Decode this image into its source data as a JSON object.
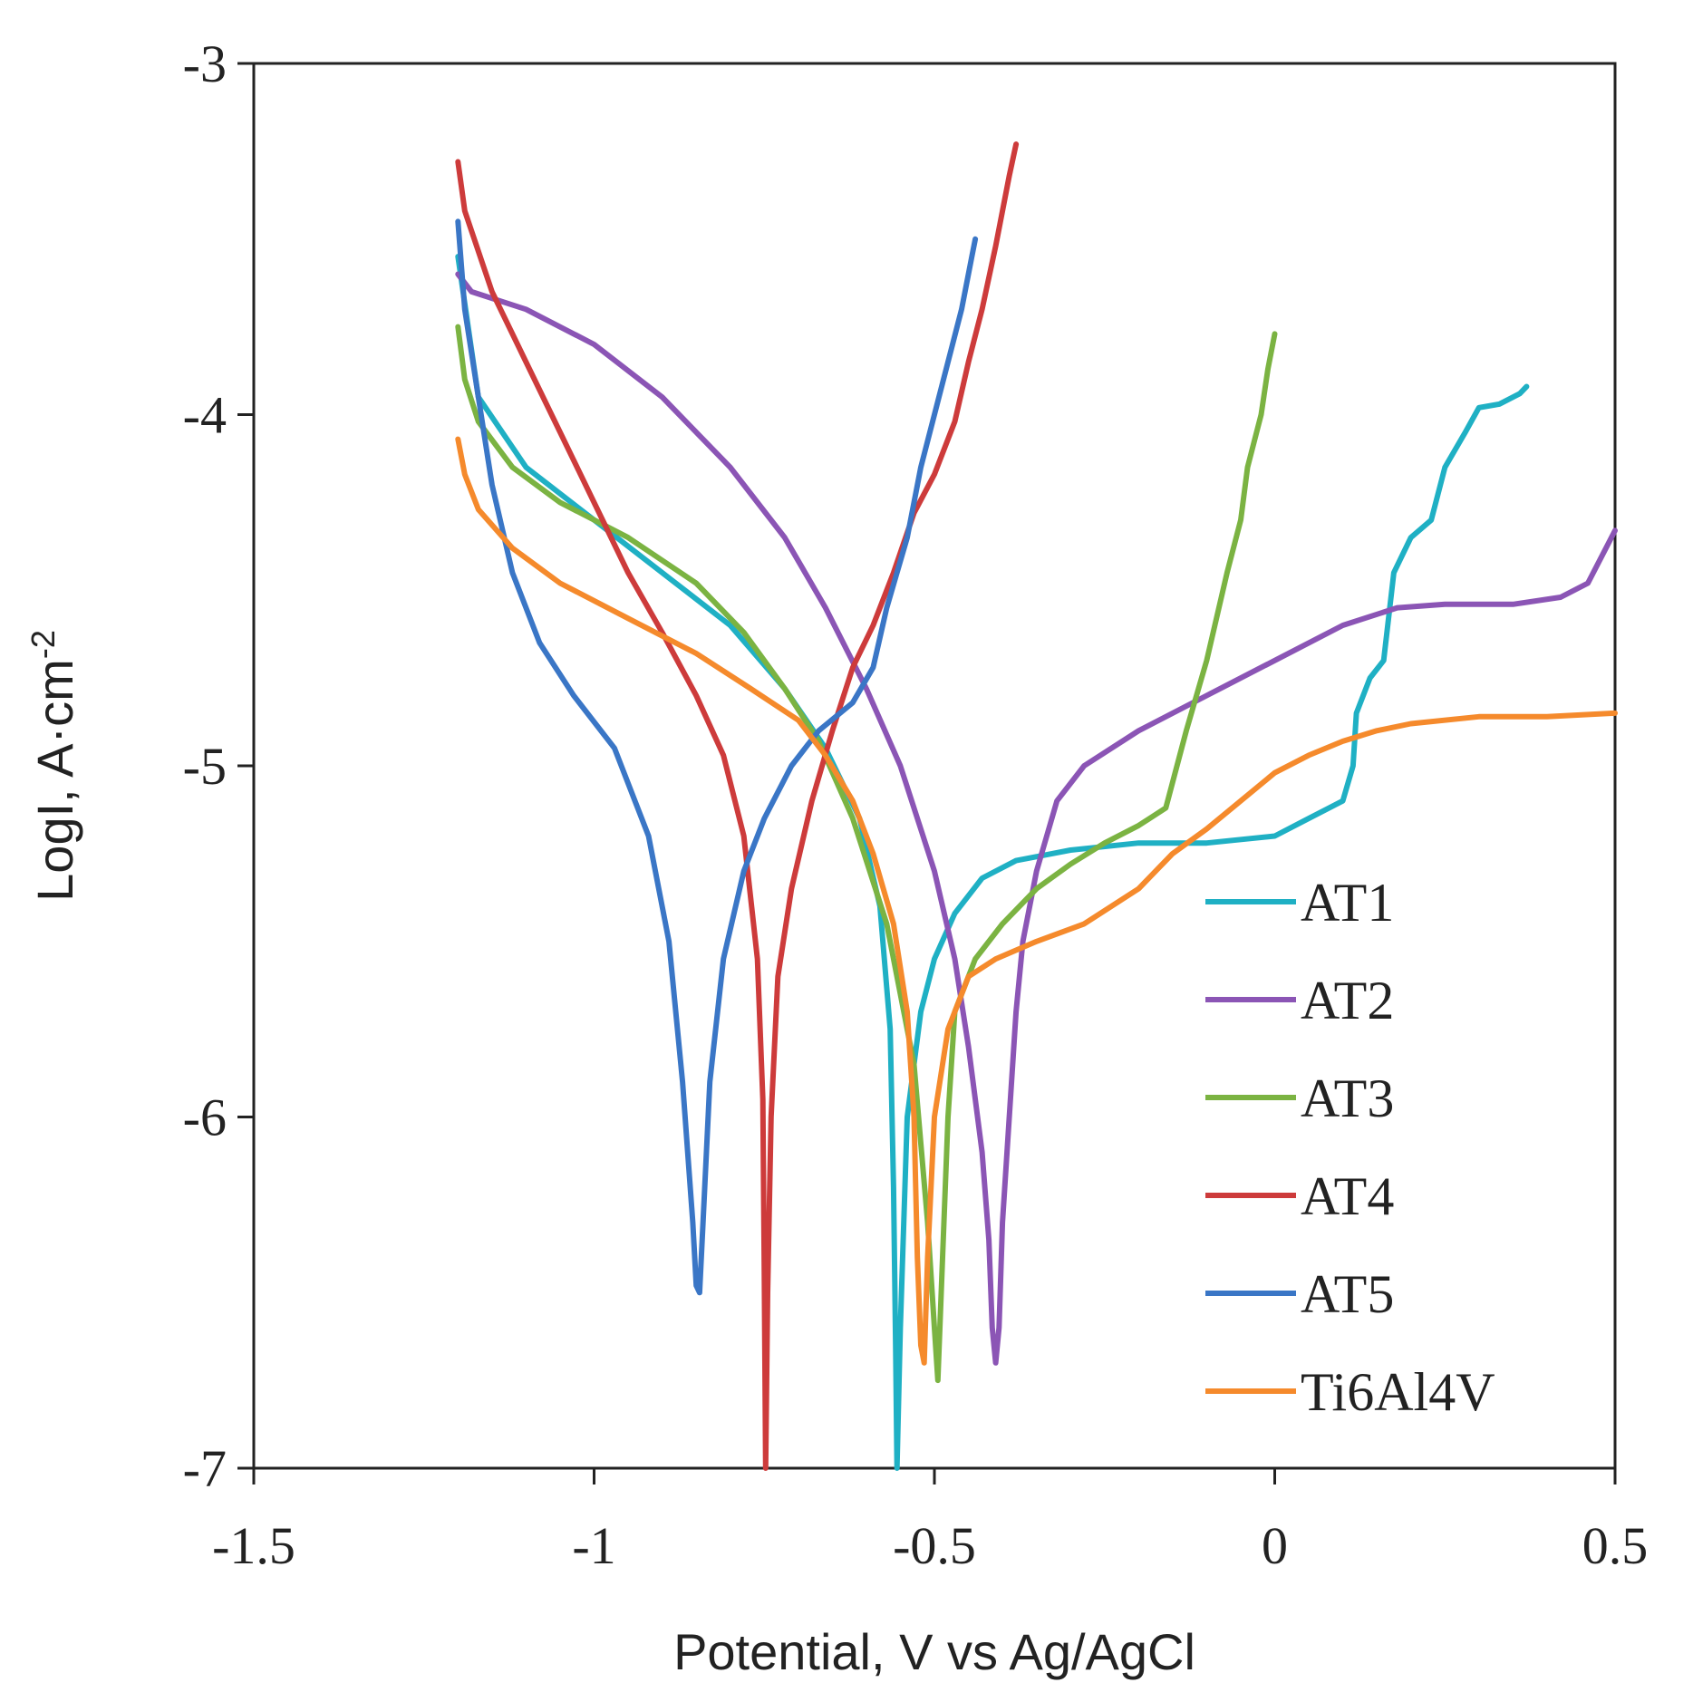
{
  "chart_data": {
    "type": "line",
    "title": "",
    "xlabel": "Potential, V vs Ag/AgCl",
    "ylabel_main": "LogI, A·cm",
    "ylabel_sup": "-2",
    "xlim": [
      -1.5,
      0.5
    ],
    "ylim": [
      -7,
      -3
    ],
    "xticks": [
      -1.5,
      -1,
      -0.5,
      0,
      0.5
    ],
    "xtick_labels": [
      "-1.5",
      "-1",
      "-0.5",
      "0",
      "0.5"
    ],
    "yticks": [
      -3,
      -4,
      -5,
      -6,
      -7
    ],
    "ytick_labels": [
      "-3",
      "-4",
      "-5",
      "-6",
      "-7"
    ],
    "grid": false,
    "legend_position": "bottom-right",
    "series": [
      {
        "name": "AT1",
        "color": "#1fb0c4",
        "points": [
          [
            -1.2,
            -3.55
          ],
          [
            -1.17,
            -3.95
          ],
          [
            -1.1,
            -4.15
          ],
          [
            -1.0,
            -4.3
          ],
          [
            -0.9,
            -4.45
          ],
          [
            -0.8,
            -4.6
          ],
          [
            -0.72,
            -4.78
          ],
          [
            -0.66,
            -4.95
          ],
          [
            -0.61,
            -5.15
          ],
          [
            -0.58,
            -5.4
          ],
          [
            -0.565,
            -5.75
          ],
          [
            -0.56,
            -6.2
          ],
          [
            -0.557,
            -6.65
          ],
          [
            -0.555,
            -7.0
          ],
          [
            -0.55,
            -6.6
          ],
          [
            -0.54,
            -6.0
          ],
          [
            -0.52,
            -5.7
          ],
          [
            -0.5,
            -5.55
          ],
          [
            -0.47,
            -5.42
          ],
          [
            -0.43,
            -5.32
          ],
          [
            -0.38,
            -5.27
          ],
          [
            -0.3,
            -5.24
          ],
          [
            -0.2,
            -5.22
          ],
          [
            -0.1,
            -5.22
          ],
          [
            0.0,
            -5.2
          ],
          [
            0.05,
            -5.15
          ],
          [
            0.1,
            -5.1
          ],
          [
            0.115,
            -5.0
          ],
          [
            0.12,
            -4.85
          ],
          [
            0.14,
            -4.75
          ],
          [
            0.16,
            -4.7
          ],
          [
            0.175,
            -4.45
          ],
          [
            0.2,
            -4.35
          ],
          [
            0.23,
            -4.3
          ],
          [
            0.25,
            -4.15
          ],
          [
            0.28,
            -4.05
          ],
          [
            0.3,
            -3.98
          ],
          [
            0.33,
            -3.97
          ],
          [
            0.36,
            -3.94
          ],
          [
            0.37,
            -3.92
          ]
        ]
      },
      {
        "name": "AT2",
        "color": "#8b55b5",
        "points": [
          [
            -1.2,
            -3.6
          ],
          [
            -1.18,
            -3.65
          ],
          [
            -1.1,
            -3.7
          ],
          [
            -1.0,
            -3.8
          ],
          [
            -0.9,
            -3.95
          ],
          [
            -0.8,
            -4.15
          ],
          [
            -0.72,
            -4.35
          ],
          [
            -0.66,
            -4.55
          ],
          [
            -0.6,
            -4.78
          ],
          [
            -0.55,
            -5.0
          ],
          [
            -0.5,
            -5.3
          ],
          [
            -0.47,
            -5.55
          ],
          [
            -0.45,
            -5.8
          ],
          [
            -0.43,
            -6.1
          ],
          [
            -0.42,
            -6.35
          ],
          [
            -0.415,
            -6.6
          ],
          [
            -0.41,
            -6.7
          ],
          [
            -0.405,
            -6.6
          ],
          [
            -0.4,
            -6.3
          ],
          [
            -0.39,
            -6.0
          ],
          [
            -0.38,
            -5.7
          ],
          [
            -0.37,
            -5.5
          ],
          [
            -0.35,
            -5.3
          ],
          [
            -0.32,
            -5.1
          ],
          [
            -0.28,
            -5.0
          ],
          [
            -0.2,
            -4.9
          ],
          [
            -0.1,
            -4.8
          ],
          [
            0.0,
            -4.7
          ],
          [
            0.1,
            -4.6
          ],
          [
            0.18,
            -4.55
          ],
          [
            0.25,
            -4.54
          ],
          [
            0.35,
            -4.54
          ],
          [
            0.42,
            -4.52
          ],
          [
            0.46,
            -4.48
          ],
          [
            0.5,
            -4.33
          ]
        ]
      },
      {
        "name": "AT3",
        "color": "#7bb342",
        "points": [
          [
            -1.2,
            -3.75
          ],
          [
            -1.19,
            -3.9
          ],
          [
            -1.17,
            -4.02
          ],
          [
            -1.12,
            -4.15
          ],
          [
            -1.05,
            -4.25
          ],
          [
            -0.95,
            -4.35
          ],
          [
            -0.85,
            -4.48
          ],
          [
            -0.78,
            -4.62
          ],
          [
            -0.72,
            -4.78
          ],
          [
            -0.67,
            -4.93
          ],
          [
            -0.62,
            -5.15
          ],
          [
            -0.57,
            -5.45
          ],
          [
            -0.53,
            -5.85
          ],
          [
            -0.51,
            -6.3
          ],
          [
            -0.5,
            -6.6
          ],
          [
            -0.495,
            -6.75
          ],
          [
            -0.49,
            -6.5
          ],
          [
            -0.48,
            -6.0
          ],
          [
            -0.47,
            -5.7
          ],
          [
            -0.44,
            -5.55
          ],
          [
            -0.4,
            -5.45
          ],
          [
            -0.35,
            -5.35
          ],
          [
            -0.3,
            -5.28
          ],
          [
            -0.25,
            -5.22
          ],
          [
            -0.2,
            -5.17
          ],
          [
            -0.16,
            -5.12
          ],
          [
            -0.13,
            -4.9
          ],
          [
            -0.1,
            -4.7
          ],
          [
            -0.07,
            -4.45
          ],
          [
            -0.05,
            -4.3
          ],
          [
            -0.04,
            -4.15
          ],
          [
            -0.02,
            -4.0
          ],
          [
            -0.01,
            -3.87
          ],
          [
            0.0,
            -3.77
          ]
        ]
      },
      {
        "name": "AT4",
        "color": "#cd3b3b",
        "points": [
          [
            -1.2,
            -3.28
          ],
          [
            -1.19,
            -3.42
          ],
          [
            -1.15,
            -3.65
          ],
          [
            -1.1,
            -3.85
          ],
          [
            -1.05,
            -4.05
          ],
          [
            -1.0,
            -4.25
          ],
          [
            -0.95,
            -4.45
          ],
          [
            -0.9,
            -4.62
          ],
          [
            -0.85,
            -4.8
          ],
          [
            -0.81,
            -4.97
          ],
          [
            -0.78,
            -5.2
          ],
          [
            -0.76,
            -5.55
          ],
          [
            -0.752,
            -5.95
          ],
          [
            -0.75,
            -6.45
          ],
          [
            -0.748,
            -7.0
          ],
          [
            -0.745,
            -6.5
          ],
          [
            -0.74,
            -6.0
          ],
          [
            -0.73,
            -5.6
          ],
          [
            -0.71,
            -5.35
          ],
          [
            -0.68,
            -5.1
          ],
          [
            -0.65,
            -4.9
          ],
          [
            -0.62,
            -4.72
          ],
          [
            -0.59,
            -4.6
          ],
          [
            -0.56,
            -4.45
          ],
          [
            -0.53,
            -4.28
          ],
          [
            -0.5,
            -4.17
          ],
          [
            -0.47,
            -4.02
          ],
          [
            -0.45,
            -3.85
          ],
          [
            -0.43,
            -3.7
          ],
          [
            -0.41,
            -3.52
          ],
          [
            -0.39,
            -3.32
          ],
          [
            -0.38,
            -3.23
          ]
        ]
      },
      {
        "name": "AT5",
        "color": "#3a76c6",
        "points": [
          [
            -1.2,
            -3.45
          ],
          [
            -1.19,
            -3.7
          ],
          [
            -1.17,
            -3.95
          ],
          [
            -1.15,
            -4.2
          ],
          [
            -1.12,
            -4.45
          ],
          [
            -1.08,
            -4.65
          ],
          [
            -1.03,
            -4.8
          ],
          [
            -0.97,
            -4.95
          ],
          [
            -0.92,
            -5.2
          ],
          [
            -0.89,
            -5.5
          ],
          [
            -0.87,
            -5.9
          ],
          [
            -0.855,
            -6.3
          ],
          [
            -0.85,
            -6.48
          ],
          [
            -0.845,
            -6.5
          ],
          [
            -0.84,
            -6.3
          ],
          [
            -0.83,
            -5.9
          ],
          [
            -0.81,
            -5.55
          ],
          [
            -0.78,
            -5.3
          ],
          [
            -0.75,
            -5.15
          ],
          [
            -0.71,
            -5.0
          ],
          [
            -0.67,
            -4.9
          ],
          [
            -0.62,
            -4.82
          ],
          [
            -0.59,
            -4.72
          ],
          [
            -0.57,
            -4.55
          ],
          [
            -0.54,
            -4.35
          ],
          [
            -0.52,
            -4.15
          ],
          [
            -0.5,
            -4.0
          ],
          [
            -0.48,
            -3.85
          ],
          [
            -0.46,
            -3.7
          ],
          [
            -0.445,
            -3.55
          ],
          [
            -0.44,
            -3.5
          ]
        ]
      },
      {
        "name": "Ti6Al4V",
        "color": "#f58a2c",
        "points": [
          [
            -1.2,
            -4.07
          ],
          [
            -1.19,
            -4.17
          ],
          [
            -1.17,
            -4.27
          ],
          [
            -1.12,
            -4.38
          ],
          [
            -1.05,
            -4.48
          ],
          [
            -0.95,
            -4.58
          ],
          [
            -0.85,
            -4.68
          ],
          [
            -0.77,
            -4.78
          ],
          [
            -0.7,
            -4.87
          ],
          [
            -0.66,
            -4.97
          ],
          [
            -0.62,
            -5.1
          ],
          [
            -0.59,
            -5.25
          ],
          [
            -0.56,
            -5.45
          ],
          [
            -0.54,
            -5.7
          ],
          [
            -0.53,
            -6.0
          ],
          [
            -0.525,
            -6.4
          ],
          [
            -0.52,
            -6.65
          ],
          [
            -0.515,
            -6.7
          ],
          [
            -0.51,
            -6.4
          ],
          [
            -0.5,
            -6.0
          ],
          [
            -0.48,
            -5.75
          ],
          [
            -0.45,
            -5.6
          ],
          [
            -0.41,
            -5.55
          ],
          [
            -0.35,
            -5.5
          ],
          [
            -0.28,
            -5.45
          ],
          [
            -0.2,
            -5.35
          ],
          [
            -0.15,
            -5.25
          ],
          [
            -0.1,
            -5.18
          ],
          [
            -0.05,
            -5.1
          ],
          [
            0.0,
            -5.02
          ],
          [
            0.05,
            -4.97
          ],
          [
            0.1,
            -4.93
          ],
          [
            0.15,
            -4.9
          ],
          [
            0.2,
            -4.88
          ],
          [
            0.3,
            -4.86
          ],
          [
            0.4,
            -4.86
          ],
          [
            0.5,
            -4.85
          ]
        ]
      }
    ]
  }
}
